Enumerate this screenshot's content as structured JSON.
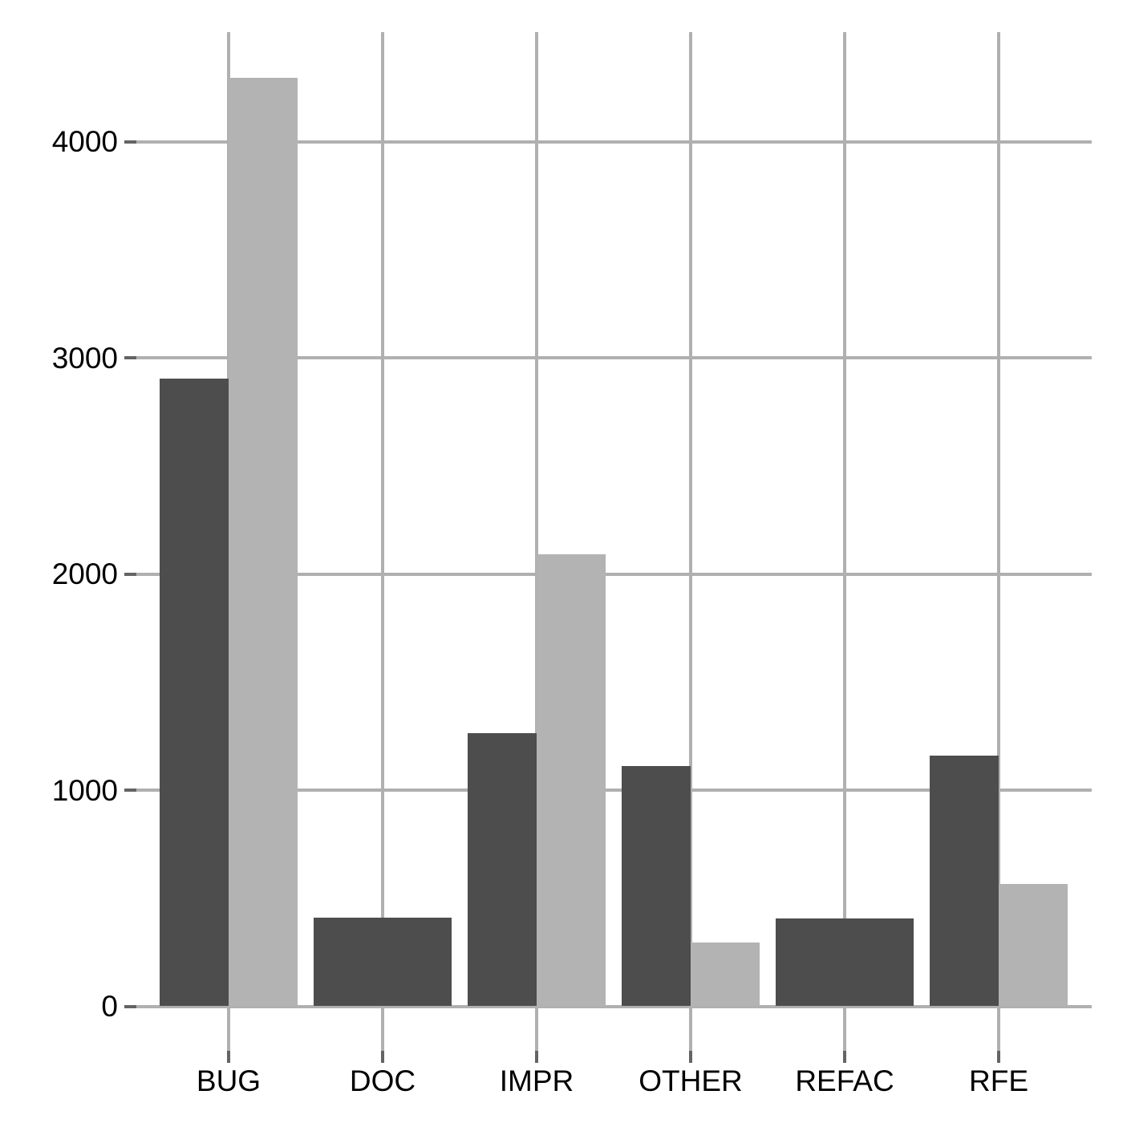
{
  "chart_data": {
    "type": "bar",
    "title": "",
    "xlabel": "",
    "ylabel": "",
    "categories": [
      "BUG",
      "DOC",
      "IMPR",
      "OTHER",
      "REFAC",
      "RFE"
    ],
    "series": [
      {
        "name": "dark-gray",
        "color": "#4d4d4d",
        "values": [
          2905,
          410,
          1265,
          1110,
          405,
          1160
        ]
      },
      {
        "name": "light-gray",
        "color": "#b3b3b3",
        "values": [
          4295,
          null,
          2090,
          295,
          null,
          565
        ]
      }
    ],
    "yticks": [
      0,
      1000,
      2000,
      3000,
      4000
    ],
    "y_tick_labels": [
      "0",
      "1000",
      "2000",
      "3000",
      "4000"
    ],
    "ylim": [
      -215,
      4505
    ],
    "grid": "both",
    "legend_position": "none",
    "bar_mode": "dodge",
    "note_missing_groups_fill_full_width": true
  },
  "colors": {
    "background": "#ffffff",
    "bar_dark": "#4d4d4d",
    "bar_light": "#b3b3b3",
    "gridline": "#b0b0b0",
    "tick_mark": "#646464",
    "label_text": "#000000"
  }
}
